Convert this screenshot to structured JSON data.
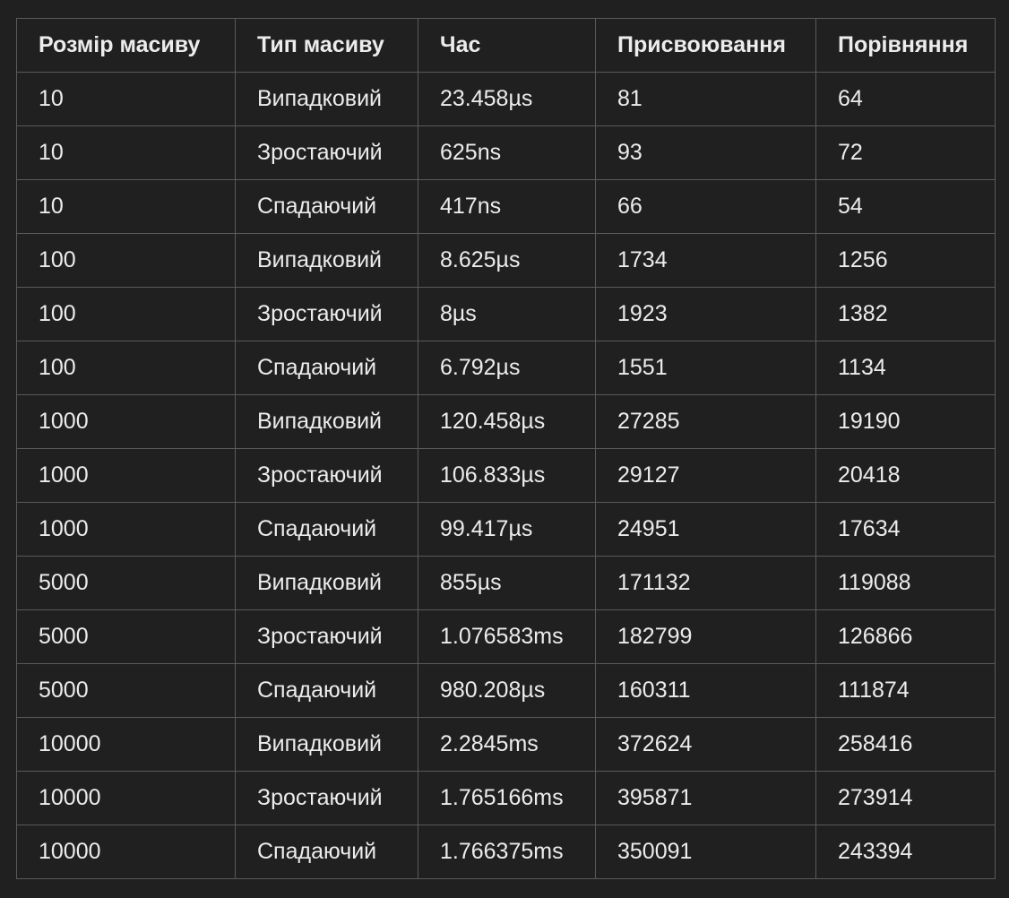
{
  "table": {
    "headers": [
      "Розмір масиву",
      "Тип масиву",
      "Час",
      "Присвоювання",
      "Порівняння"
    ],
    "rows": [
      [
        "10",
        "Випадковий",
        "23.458µs",
        "81",
        "64"
      ],
      [
        "10",
        "Зростаючий",
        "625ns",
        "93",
        "72"
      ],
      [
        "10",
        "Спадаючий",
        "417ns",
        "66",
        "54"
      ],
      [
        "100",
        "Випадковий",
        "8.625µs",
        "1734",
        "1256"
      ],
      [
        "100",
        "Зростаючий",
        "8µs",
        "1923",
        "1382"
      ],
      [
        "100",
        "Спадаючий",
        "6.792µs",
        "1551",
        "1134"
      ],
      [
        "1000",
        "Випадковий",
        "120.458µs",
        "27285",
        "19190"
      ],
      [
        "1000",
        "Зростаючий",
        "106.833µs",
        "29127",
        "20418"
      ],
      [
        "1000",
        "Спадаючий",
        "99.417µs",
        "24951",
        "17634"
      ],
      [
        "5000",
        "Випадковий",
        "855µs",
        "171132",
        "119088"
      ],
      [
        "5000",
        "Зростаючий",
        "1.076583ms",
        "182799",
        "126866"
      ],
      [
        "5000",
        "Спадаючий",
        "980.208µs",
        "160311",
        "111874"
      ],
      [
        "10000",
        "Випадковий",
        "2.2845ms",
        "372624",
        "258416"
      ],
      [
        "10000",
        "Зростаючий",
        "1.765166ms",
        "395871",
        "273914"
      ],
      [
        "10000",
        "Спадаючий",
        "1.766375ms",
        "350091",
        "243394"
      ]
    ]
  },
  "colors": {
    "background": "#202020",
    "text": "#ececec",
    "border": "#5a5a5a"
  }
}
